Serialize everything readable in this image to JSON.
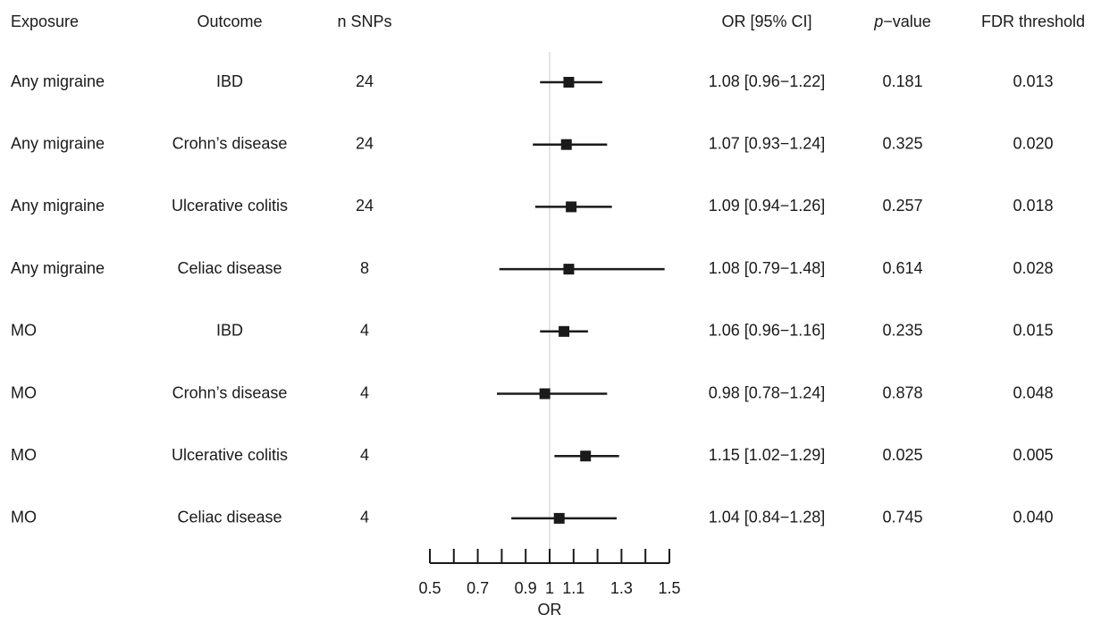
{
  "chart_data": {
    "type": "forest",
    "headers": {
      "exposure": "Exposure",
      "outcome": "Outcome",
      "n_snps": "n SNPs",
      "or_ci": "OR [95% CI]",
      "p_value": [
        "p",
        "−value"
      ],
      "fdr": "FDR threshold"
    },
    "rows": [
      {
        "exposure": "Any migraine",
        "outcome": "IBD",
        "n_snps": "24",
        "or": 1.08,
        "lo": 0.96,
        "hi": 1.22,
        "or_ci": "1.08 [0.96−1.22]",
        "p_value": "0.181",
        "fdr": "0.013"
      },
      {
        "exposure": "Any migraine",
        "outcome": "Crohn’s disease",
        "n_snps": "24",
        "or": 1.07,
        "lo": 0.93,
        "hi": 1.24,
        "or_ci": "1.07 [0.93−1.24]",
        "p_value": "0.325",
        "fdr": "0.020"
      },
      {
        "exposure": "Any migraine",
        "outcome": "Ulcerative colitis",
        "n_snps": "24",
        "or": 1.09,
        "lo": 0.94,
        "hi": 1.26,
        "or_ci": "1.09 [0.94−1.26]",
        "p_value": "0.257",
        "fdr": "0.018"
      },
      {
        "exposure": "Any migraine",
        "outcome": "Celiac disease",
        "n_snps": "8",
        "or": 1.08,
        "lo": 0.79,
        "hi": 1.48,
        "or_ci": "1.08 [0.79−1.48]",
        "p_value": "0.614",
        "fdr": "0.028"
      },
      {
        "exposure": "MO",
        "outcome": "IBD",
        "n_snps": "4",
        "or": 1.06,
        "lo": 0.96,
        "hi": 1.16,
        "or_ci": "1.06 [0.96−1.16]",
        "p_value": "0.235",
        "fdr": "0.015"
      },
      {
        "exposure": "MO",
        "outcome": "Crohn’s disease",
        "n_snps": "4",
        "or": 0.98,
        "lo": 0.78,
        "hi": 1.24,
        "or_ci": "0.98 [0.78−1.24]",
        "p_value": "0.878",
        "fdr": "0.048"
      },
      {
        "exposure": "MO",
        "outcome": "Ulcerative colitis",
        "n_snps": "4",
        "or": 1.15,
        "lo": 1.02,
        "hi": 1.29,
        "or_ci": "1.15 [1.02−1.29]",
        "p_value": "0.025",
        "fdr": "0.005"
      },
      {
        "exposure": "MO",
        "outcome": "Celiac disease",
        "n_snps": "4",
        "or": 1.04,
        "lo": 0.84,
        "hi": 1.28,
        "or_ci": "1.04 [0.84−1.28]",
        "p_value": "0.745",
        "fdr": "0.040"
      }
    ],
    "xlabel": "OR",
    "xlim": [
      0.5,
      1.5
    ],
    "xticks": [
      0.5,
      0.7,
      0.9,
      1,
      1.1,
      1.3,
      1.5
    ],
    "xticks_minor": [
      0.6,
      0.8,
      1.2,
      1.4
    ],
    "ref_line": 1,
    "color": "#1a1a1a"
  }
}
